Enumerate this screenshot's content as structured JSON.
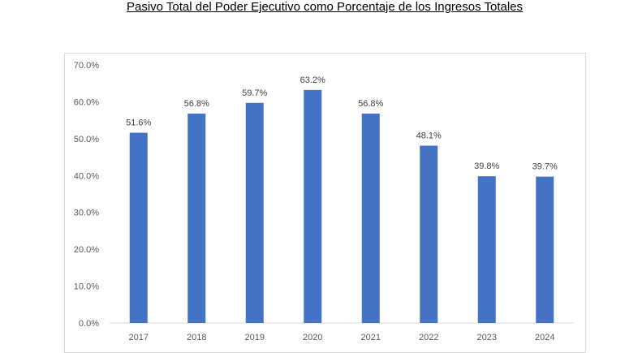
{
  "chart_data": {
    "type": "bar",
    "title": "Pasivo Total del Poder Ejecutivo como Porcentaje de los Ingresos Totales",
    "xlabel": "",
    "ylabel": "",
    "categories": [
      "2017",
      "2018",
      "2019",
      "2020",
      "2021",
      "2022",
      "2023",
      "2024"
    ],
    "values": [
      51.6,
      56.8,
      59.7,
      63.2,
      56.8,
      48.1,
      39.8,
      39.7
    ],
    "data_labels": [
      "51.6%",
      "56.8%",
      "59.7%",
      "63.2%",
      "56.8%",
      "48.1%",
      "39.8%",
      "39.7%"
    ],
    "ylim": [
      0,
      70
    ],
    "yticks": [
      0,
      10,
      20,
      30,
      40,
      50,
      60,
      70
    ],
    "ytick_labels": [
      "0.0%",
      "10.0%",
      "20.0%",
      "30.0%",
      "40.0%",
      "50.0%",
      "60.0%",
      "70.0%"
    ],
    "grid": false,
    "legend": "none",
    "bar_color": "#4472c4"
  }
}
